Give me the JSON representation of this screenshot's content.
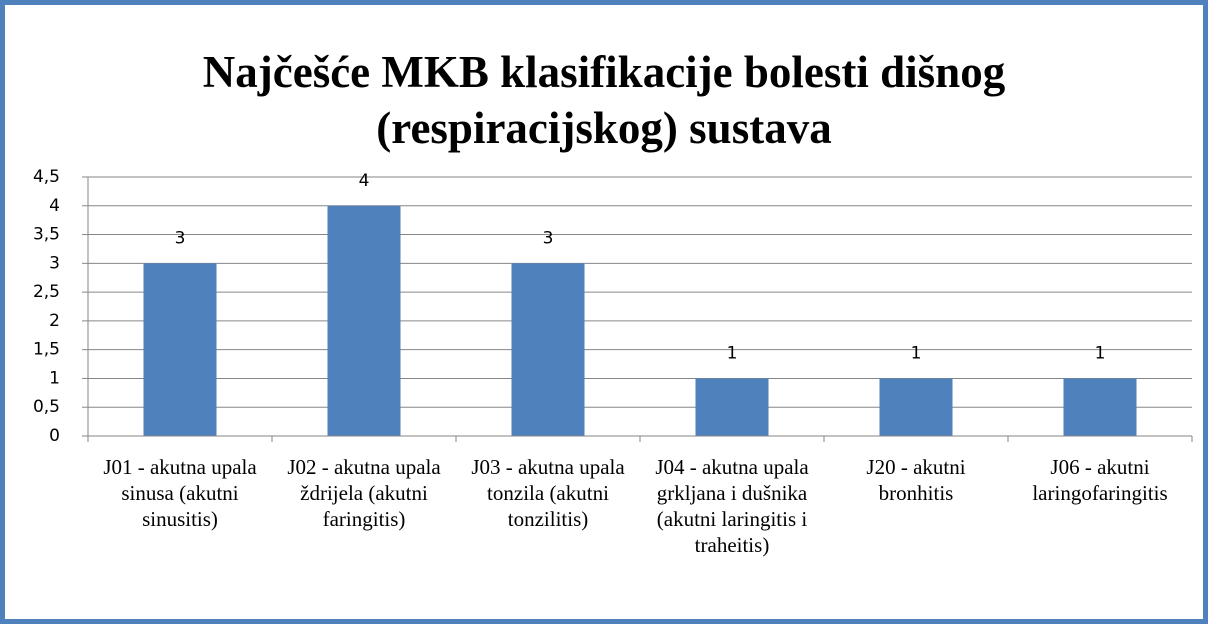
{
  "chart_data": {
    "type": "bar",
    "title": "Najčešće MKB klasifikacije bolesti dišnog (respiracijskog) sustava",
    "categories": [
      "J01 - akutna upala sinusa (akutni sinusitis)",
      "J02 - akutna upala ždrijela (akutni faringitis)",
      "J03 - akutna upala tonzila (akutni tonzilitis)",
      "J04 - akutna upala grkljana i dušnika (akutni laringitis i traheitis)",
      "J20 - akutni bronhitis",
      "J06 - akutni laringofaringitis"
    ],
    "values": [
      3,
      4,
      3,
      1,
      1,
      1
    ],
    "color": "#4f81bd",
    "ylim": [
      0,
      4.5
    ],
    "yticks": [
      0,
      {
        "value": 0.5,
        "label": "0,5"
      },
      1,
      {
        "value": 1.5,
        "label": "1,5"
      },
      2,
      {
        "value": 2.5,
        "label": "2,5"
      },
      3,
      {
        "value": 3.5,
        "label": "3,5"
      },
      4,
      {
        "value": 4.5,
        "label": "4,5"
      }
    ],
    "grid": true
  }
}
